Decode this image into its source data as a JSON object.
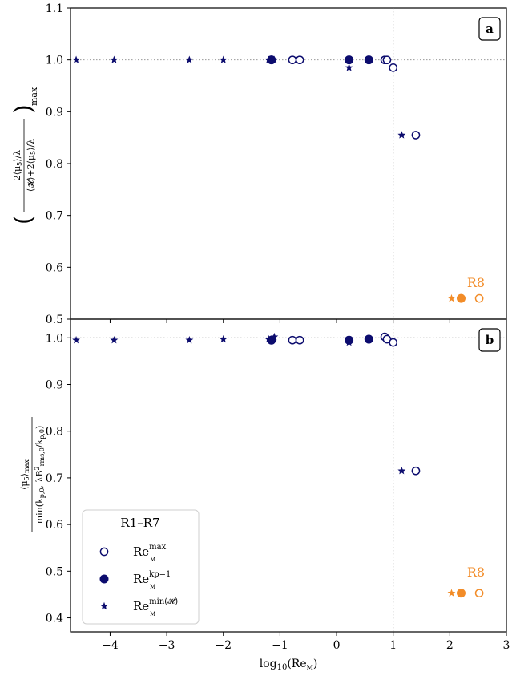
{
  "chart_data": [
    {
      "type": "scatter",
      "panel_label": "a",
      "ylabel": "(2⟨μ5⟩/λ / (⟨𝓗⟩+2⟨μ5⟩/λ))max",
      "xlim": [
        -4.7,
        3
      ],
      "ylim": [
        0.5,
        1.1
      ],
      "yticks": [
        "0.5",
        "0.6",
        "0.7",
        "0.8",
        "0.9",
        "1.0",
        "1.1"
      ],
      "hline": 1.0,
      "vline": 1.0,
      "annotation": "R8",
      "series": [
        {
          "marker": "open-circle",
          "color": "#0c0c6e",
          "x": [
            -1.15,
            -0.78,
            -0.65,
            0.22,
            0.57,
            0.85,
            0.89,
            1.0,
            1.4
          ],
          "y": [
            1.0,
            1.0,
            1.0,
            1.0,
            1.0,
            1.0,
            1.0,
            0.985,
            0.855
          ]
        },
        {
          "marker": "filled-circle",
          "color": "#0c0c6e",
          "x": [
            -1.15,
            0.22,
            0.57
          ],
          "y": [
            1.0,
            1.0,
            1.0
          ]
        },
        {
          "marker": "star",
          "color": "#0c0c6e",
          "x": [
            -4.6,
            -3.93,
            -2.6,
            -2.0,
            -1.2,
            -1.1,
            0.22,
            1.15
          ],
          "y": [
            1.0,
            1.0,
            1.0,
            1.0,
            1.0,
            1.0,
            0.985,
            0.855
          ]
        },
        {
          "marker": "open-circle",
          "color": "#f28c28",
          "x": [
            2.52
          ],
          "y": [
            0.54
          ]
        },
        {
          "marker": "filled-circle",
          "color": "#f28c28",
          "x": [
            2.2
          ],
          "y": [
            0.54
          ]
        },
        {
          "marker": "star",
          "color": "#f28c28",
          "x": [
            2.03
          ],
          "y": [
            0.54
          ]
        }
      ]
    },
    {
      "type": "scatter",
      "panel_label": "b",
      "ylabel": "⟨μ5⟩max / min(kp,0, λB²rms,0/kp,0)",
      "xlabel": "log10(ReM)",
      "xlim": [
        -4.7,
        3
      ],
      "ylim": [
        0.37,
        1.04
      ],
      "xticks": [
        "−4",
        "−3",
        "−2",
        "−1",
        "0",
        "1",
        "2",
        "3"
      ],
      "xtick_values": [
        -4,
        -3,
        -2,
        -1,
        0,
        1,
        2,
        3
      ],
      "yticks": [
        "0.4",
        "0.5",
        "0.6",
        "0.7",
        "0.8",
        "0.9",
        "1.0"
      ],
      "hline": 1.0,
      "vline": 1.0,
      "annotation": "R8",
      "series": [
        {
          "marker": "open-circle",
          "color": "#0c0c6e",
          "x": [
            -1.15,
            -0.78,
            -0.65,
            0.22,
            0.57,
            0.85,
            0.89,
            1.0,
            1.4
          ],
          "y": [
            0.995,
            0.995,
            0.995,
            0.995,
            0.997,
            1.002,
            0.997,
            0.99,
            0.715
          ]
        },
        {
          "marker": "filled-circle",
          "color": "#0c0c6e",
          "x": [
            -1.15,
            0.22,
            0.57
          ],
          "y": [
            0.995,
            0.995,
            0.997
          ]
        },
        {
          "marker": "star",
          "color": "#0c0c6e",
          "x": [
            -4.6,
            -3.93,
            -2.6,
            -2.0,
            -1.2,
            -1.1,
            0.22,
            1.15
          ],
          "y": [
            0.995,
            0.995,
            0.995,
            0.997,
            0.997,
            1.002,
            0.99,
            0.715
          ]
        },
        {
          "marker": "open-circle",
          "color": "#f28c28",
          "x": [
            2.52
          ],
          "y": [
            0.453
          ]
        },
        {
          "marker": "filled-circle",
          "color": "#f28c28",
          "x": [
            2.2
          ],
          "y": [
            0.453
          ]
        },
        {
          "marker": "star",
          "color": "#f28c28",
          "x": [
            2.03
          ],
          "y": [
            0.453
          ]
        }
      ]
    }
  ],
  "legend": {
    "title": "R1–R7",
    "placement": "lower-left",
    "entries": [
      {
        "marker": "open-circle",
        "sup": "max",
        "sub": "M"
      },
      {
        "marker": "filled-circle",
        "sup": "kp=1",
        "sub": "M"
      },
      {
        "marker": "star",
        "sup": "min(𝓗)",
        "sub": "M"
      }
    ],
    "base": "Re"
  },
  "colors": {
    "navy": "#0c0c6e",
    "orange": "#f28c28"
  }
}
